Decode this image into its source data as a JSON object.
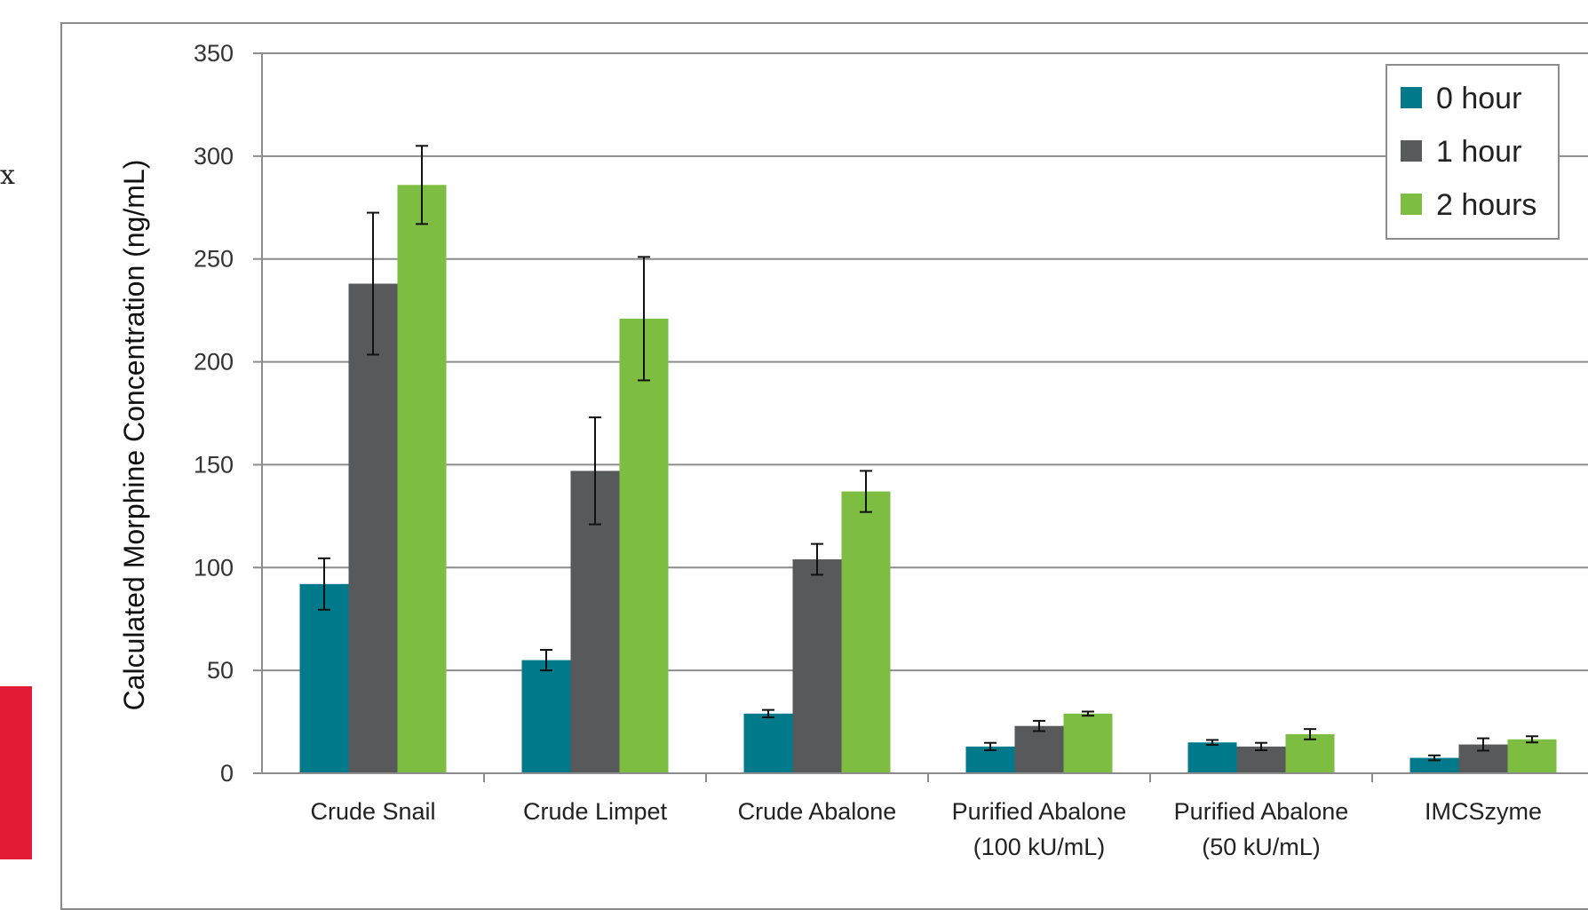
{
  "page": {
    "edge_glyph": "x"
  },
  "chart_data": {
    "type": "bar",
    "ylabel": "Calculated Morphine Concentration (ng/mL)",
    "ylim": [
      0,
      350
    ],
    "yticks": [
      0,
      50,
      100,
      150,
      200,
      250,
      300,
      350
    ],
    "grid": true,
    "legend_position": "top-right",
    "categories": [
      [
        "Crude Snail"
      ],
      [
        "Crude Limpet"
      ],
      [
        "Crude Abalone"
      ],
      [
        "Purified Abalone",
        "(100 kU/mL)"
      ],
      [
        "Purified Abalone",
        "(50 kU/mL)"
      ],
      [
        "IMCSzyme"
      ]
    ],
    "series": [
      {
        "name": "0 hour",
        "color": "#007a8a",
        "values": [
          92,
          55,
          29,
          13,
          15,
          7.5
        ],
        "errors": [
          12.5,
          5,
          1.8,
          1.8,
          1.2,
          1.2
        ]
      },
      {
        "name": "1 hour",
        "color": "#58595b",
        "values": [
          238,
          147,
          104,
          23,
          13,
          14
        ],
        "errors": [
          34.5,
          26,
          7.5,
          2.5,
          1.8,
          3
        ]
      },
      {
        "name": "2 hours",
        "color": "#7dbd42",
        "values": [
          286,
          221,
          137,
          29,
          19,
          16.5
        ],
        "errors": [
          19,
          30,
          10,
          1,
          2.5,
          1.5
        ]
      }
    ]
  }
}
